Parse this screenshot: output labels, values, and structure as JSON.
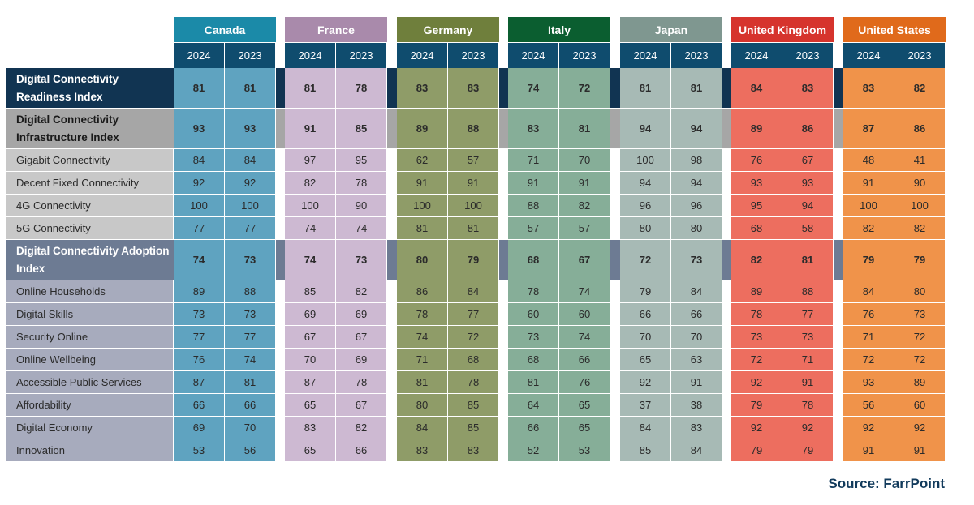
{
  "chart_data": {
    "type": "table",
    "years": [
      "2024",
      "2023"
    ],
    "countries": [
      {
        "name": "Canada",
        "header_color": "#1b8aa8",
        "cell_color": "#5fa3c0"
      },
      {
        "name": "France",
        "header_color": "#a98aab",
        "cell_color": "#cdb9d2"
      },
      {
        "name": "Germany",
        "header_color": "#6f7f3c",
        "cell_color": "#8f9c68"
      },
      {
        "name": "Italy",
        "header_color": "#0b5e30",
        "cell_color": "#86ae98"
      },
      {
        "name": "Japan",
        "header_color": "#7f9790",
        "cell_color": "#a7bab5"
      },
      {
        "name": "United Kingdom",
        "header_color": "#d6342d",
        "cell_color": "#ed6e5f"
      },
      {
        "name": "United States",
        "header_color": "#e06a1b",
        "cell_color": "#f0934a"
      }
    ],
    "rows": [
      {
        "label": "Digital Connectivity Readiness Index",
        "kind": "readiness",
        "values": [
          [
            81,
            81
          ],
          [
            81,
            78
          ],
          [
            83,
            83
          ],
          [
            74,
            72
          ],
          [
            81,
            81
          ],
          [
            84,
            83
          ],
          [
            83,
            82
          ]
        ]
      },
      {
        "label": "Digital Connectivity Infrastructure Index",
        "kind": "infrastructure",
        "values": [
          [
            93,
            93
          ],
          [
            91,
            85
          ],
          [
            89,
            88
          ],
          [
            83,
            81
          ],
          [
            94,
            94
          ],
          [
            89,
            86
          ],
          [
            87,
            86
          ]
        ]
      },
      {
        "label": "Gigabit Connectivity",
        "kind": "infra-item",
        "values": [
          [
            84,
            84
          ],
          [
            97,
            95
          ],
          [
            62,
            57
          ],
          [
            71,
            70
          ],
          [
            100,
            98
          ],
          [
            76,
            67
          ],
          [
            48,
            41
          ]
        ]
      },
      {
        "label": "Decent Fixed Connectivity",
        "kind": "infra-item",
        "values": [
          [
            92,
            92
          ],
          [
            82,
            78
          ],
          [
            91,
            91
          ],
          [
            91,
            91
          ],
          [
            94,
            94
          ],
          [
            93,
            93
          ],
          [
            91,
            90
          ]
        ]
      },
      {
        "label": "4G Connectivity",
        "kind": "infra-item",
        "values": [
          [
            100,
            100
          ],
          [
            100,
            90
          ],
          [
            100,
            100
          ],
          [
            88,
            82
          ],
          [
            96,
            96
          ],
          [
            95,
            94
          ],
          [
            100,
            100
          ]
        ]
      },
      {
        "label": "5G Connectivity",
        "kind": "infra-item",
        "values": [
          [
            77,
            77
          ],
          [
            74,
            74
          ],
          [
            81,
            81
          ],
          [
            57,
            57
          ],
          [
            80,
            80
          ],
          [
            68,
            58
          ],
          [
            82,
            82
          ]
        ]
      },
      {
        "label": "Digital Connectivity Adoption Index",
        "kind": "adoption",
        "values": [
          [
            74,
            73
          ],
          [
            74,
            73
          ],
          [
            80,
            79
          ],
          [
            68,
            67
          ],
          [
            72,
            73
          ],
          [
            82,
            81
          ],
          [
            79,
            79
          ]
        ]
      },
      {
        "label": "Online Households",
        "kind": "adopt-item",
        "values": [
          [
            89,
            88
          ],
          [
            85,
            82
          ],
          [
            86,
            84
          ],
          [
            78,
            74
          ],
          [
            79,
            84
          ],
          [
            89,
            88
          ],
          [
            84,
            80
          ]
        ]
      },
      {
        "label": "Digital Skills",
        "kind": "adopt-item",
        "values": [
          [
            73,
            73
          ],
          [
            69,
            69
          ],
          [
            78,
            77
          ],
          [
            60,
            60
          ],
          [
            66,
            66
          ],
          [
            78,
            77
          ],
          [
            76,
            73
          ]
        ]
      },
      {
        "label": "Security Online",
        "kind": "adopt-item",
        "values": [
          [
            77,
            77
          ],
          [
            67,
            67
          ],
          [
            74,
            72
          ],
          [
            73,
            74
          ],
          [
            70,
            70
          ],
          [
            73,
            73
          ],
          [
            71,
            72
          ]
        ]
      },
      {
        "label": "Online Wellbeing",
        "kind": "adopt-item",
        "values": [
          [
            76,
            74
          ],
          [
            70,
            69
          ],
          [
            71,
            68
          ],
          [
            68,
            66
          ],
          [
            65,
            63
          ],
          [
            72,
            71
          ],
          [
            72,
            72
          ]
        ]
      },
      {
        "label": "Accessible Public Services",
        "kind": "adopt-item",
        "values": [
          [
            87,
            81
          ],
          [
            87,
            78
          ],
          [
            81,
            78
          ],
          [
            81,
            76
          ],
          [
            92,
            91
          ],
          [
            92,
            91
          ],
          [
            93,
            89
          ]
        ]
      },
      {
        "label": "Affordability",
        "kind": "adopt-item",
        "values": [
          [
            66,
            66
          ],
          [
            65,
            67
          ],
          [
            80,
            85
          ],
          [
            64,
            65
          ],
          [
            37,
            38
          ],
          [
            79,
            78
          ],
          [
            56,
            60
          ]
        ]
      },
      {
        "label": "Digital Economy",
        "kind": "adopt-item",
        "values": [
          [
            69,
            70
          ],
          [
            83,
            82
          ],
          [
            84,
            85
          ],
          [
            66,
            65
          ],
          [
            84,
            83
          ],
          [
            92,
            92
          ],
          [
            92,
            92
          ]
        ]
      },
      {
        "label": "Innovation",
        "kind": "adopt-item",
        "values": [
          [
            53,
            56
          ],
          [
            65,
            66
          ],
          [
            83,
            83
          ],
          [
            52,
            53
          ],
          [
            85,
            84
          ],
          [
            79,
            79
          ],
          [
            91,
            91
          ]
        ]
      }
    ]
  },
  "source": "Source: FarrPoint",
  "colors": {
    "year_header": "#0f4c6e",
    "readiness_label": "#113452",
    "infrastructure_label": "#a6a6a6",
    "infra_item_label": "#c8c8c8",
    "adoption_label": "#6d7b93",
    "adopt_item_label": "#a7abbd"
  }
}
